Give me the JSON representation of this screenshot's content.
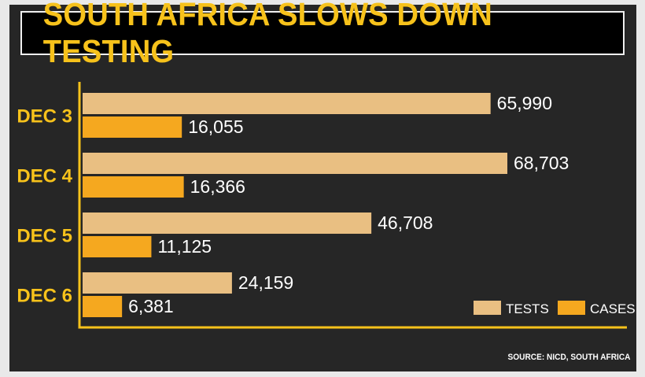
{
  "title": "SOUTH AFRICA SLOWS DOWN TESTING",
  "source": "SOURCE: NICD, SOUTH AFRICA",
  "colors": {
    "tests": "#e9bf82",
    "cases": "#f5a81f",
    "axis": "#f7c21b",
    "category_label": "#f7c21b",
    "value_label": "#ffffff"
  },
  "chart_data": {
    "type": "bar",
    "orientation": "horizontal",
    "categories": [
      "DEC 3",
      "DEC 4",
      "DEC 5",
      "DEC 6"
    ],
    "series": [
      {
        "name": "TESTS",
        "values": [
          65990,
          68703,
          46708,
          24159
        ],
        "labels": [
          "65,990",
          "68,703",
          "46,708",
          "24,159"
        ]
      },
      {
        "name": "CASES",
        "values": [
          16055,
          16366,
          11125,
          6381
        ],
        "labels": [
          "16,055",
          "16,366",
          "11,125",
          "6,381"
        ]
      }
    ],
    "title": "SOUTH AFRICA SLOWS DOWN TESTING",
    "legend": "bottom-right",
    "grid": false
  }
}
